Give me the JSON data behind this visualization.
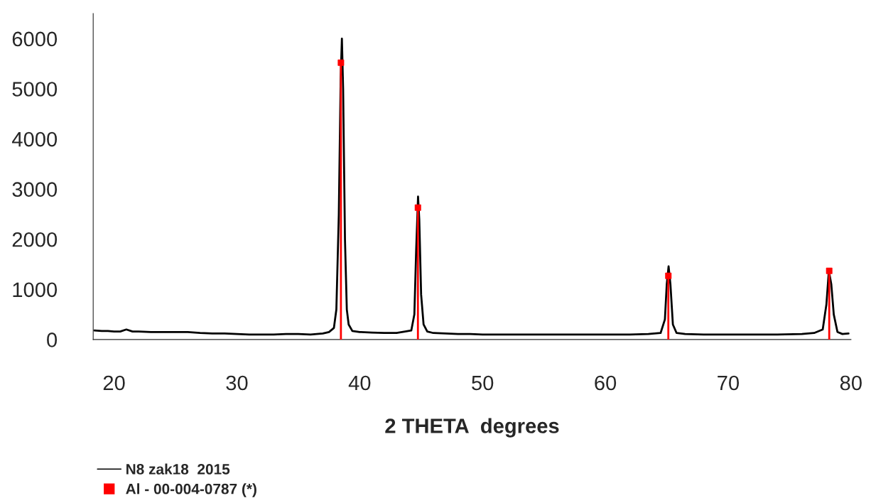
{
  "chart_data": {
    "type": "line",
    "xlabel": "2 THETA  degrees",
    "xlim": [
      18.3,
      80
    ],
    "xticks": [
      20,
      30,
      40,
      50,
      60,
      70,
      80
    ],
    "ylim": [
      0,
      6500
    ],
    "yticks": [
      0,
      1000,
      2000,
      3000,
      4000,
      5000,
      6000
    ],
    "grid": false,
    "legend": "bottom left",
    "series": [
      {
        "name": "N8 zak18  2015",
        "color": "#000000",
        "marker": "none",
        "x": [
          18.4,
          19,
          19.5,
          20,
          20.5,
          21,
          21.5,
          22,
          23,
          24,
          25,
          26,
          27,
          28,
          29,
          30,
          31,
          32,
          33,
          34,
          35,
          36,
          37,
          37.5,
          37.9,
          38.1,
          38.3,
          38.45,
          38.55,
          38.65,
          38.8,
          38.95,
          39.1,
          39.4,
          40,
          41,
          42,
          43,
          43.7,
          44.2,
          44.45,
          44.6,
          44.75,
          44.85,
          45,
          45.2,
          45.5,
          46,
          47,
          48,
          49,
          50,
          52,
          54,
          56,
          58,
          60,
          62,
          63.5,
          64.5,
          64.85,
          65.0,
          65.15,
          65.3,
          65.5,
          65.8,
          66.5,
          68,
          70,
          72,
          74,
          76,
          77,
          77.7,
          78,
          78.2,
          78.4,
          78.6,
          78.9,
          79.3,
          79.8
        ],
        "values": [
          180,
          170,
          170,
          160,
          160,
          200,
          160,
          160,
          150,
          150,
          150,
          150,
          130,
          120,
          120,
          110,
          100,
          100,
          100,
          110,
          110,
          100,
          120,
          150,
          230,
          600,
          2500,
          5200,
          6000,
          5000,
          2000,
          600,
          300,
          170,
          150,
          140,
          130,
          130,
          160,
          180,
          500,
          1800,
          2850,
          2400,
          900,
          300,
          160,
          130,
          120,
          110,
          110,
          100,
          100,
          100,
          100,
          100,
          100,
          100,
          110,
          130,
          400,
          1100,
          1460,
          1100,
          300,
          130,
          110,
          100,
          100,
          100,
          100,
          110,
          130,
          200,
          700,
          1370,
          1100,
          500,
          150,
          110,
          120
        ]
      },
      {
        "name": "Al - 00-004-0787 (*)",
        "color": "#ff0000",
        "type": "lollipop",
        "marker": "square",
        "x": [
          38.47,
          44.74,
          65.13,
          78.23
        ],
        "values": [
          5520,
          2630,
          1270,
          1370
        ]
      }
    ]
  }
}
